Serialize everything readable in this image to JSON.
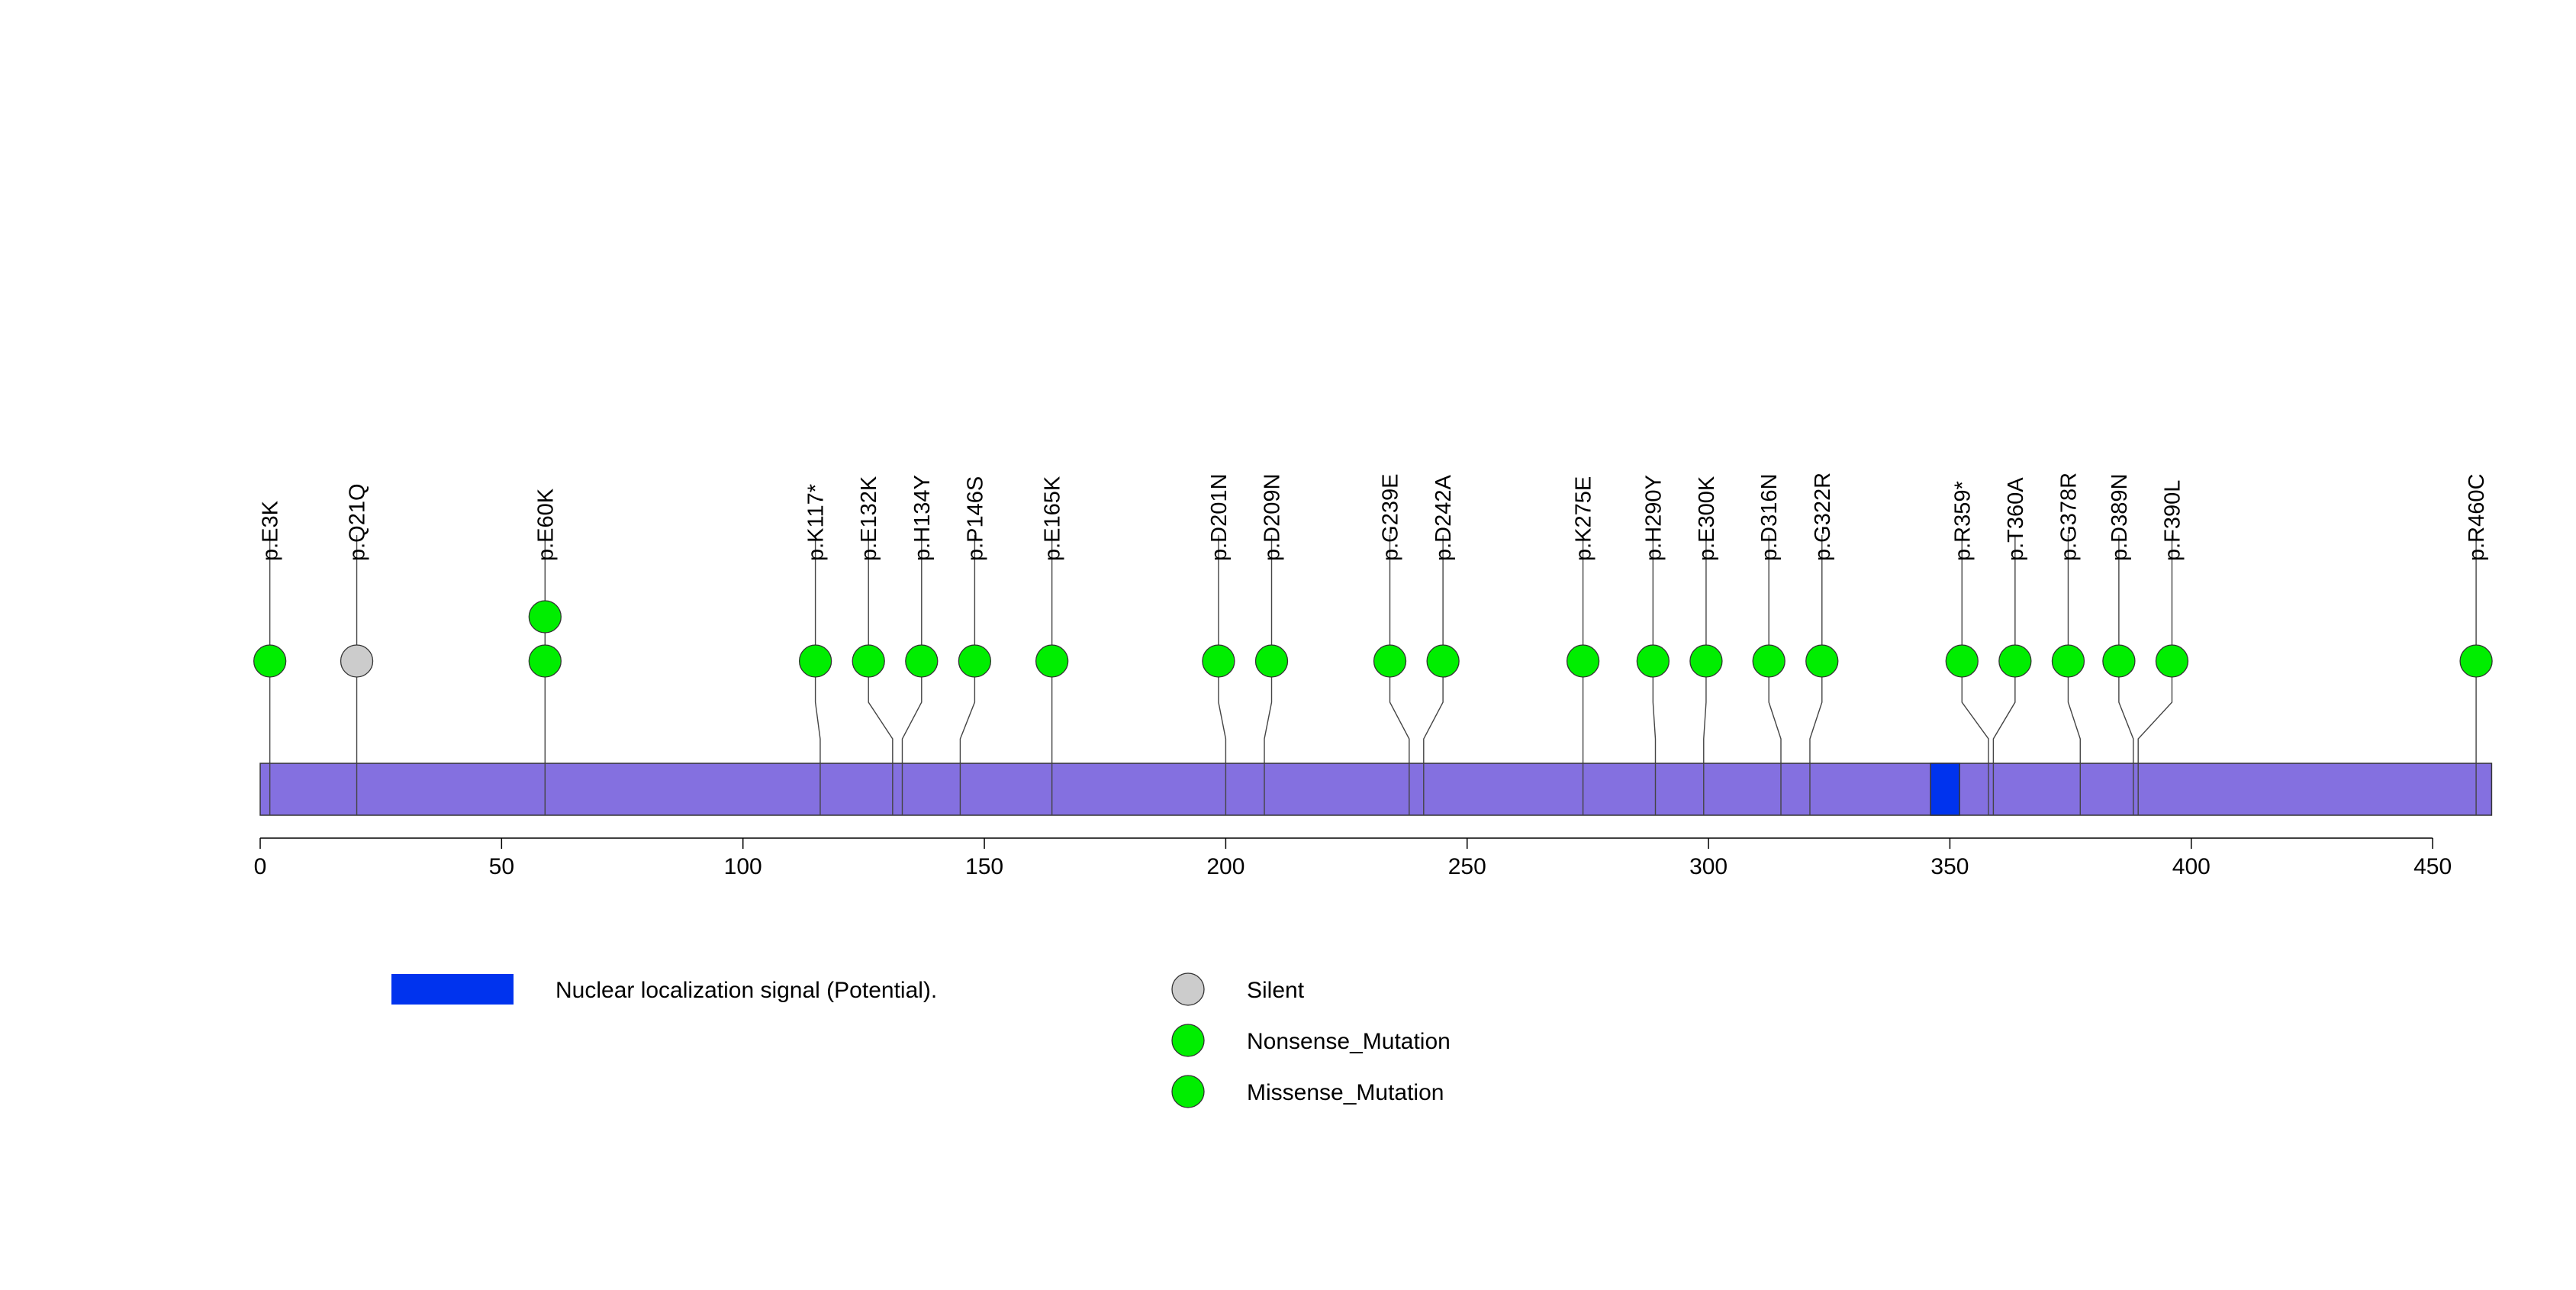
{
  "chart_data": {
    "type": "lollipop",
    "title": "",
    "protein_length": 460,
    "x_axis": {
      "ticks": [
        0,
        50,
        100,
        150,
        200,
        250,
        300,
        350,
        400,
        450
      ],
      "tick_labels": [
        "0",
        "50",
        "100",
        "150",
        "200",
        "250",
        "300",
        "350",
        "400",
        "450"
      ]
    },
    "domains": [
      {
        "name": "Nuclear localization signal (Potential).",
        "start": 346,
        "end": 352,
        "color": "#0033ee"
      }
    ],
    "mutations": [
      {
        "label": "p.E3K",
        "position": 2,
        "head": 2,
        "count": 1,
        "type": "Missense_Mutation",
        "color": "#00ee00"
      },
      {
        "label": "p.Q21Q",
        "position": 20,
        "head": 20,
        "count": 1,
        "type": "Silent",
        "color": "#cccccc"
      },
      {
        "label": "p.E60K",
        "position": 59,
        "head": 59,
        "count": 2,
        "type": "Missense_Mutation",
        "color": "#00ee00"
      },
      {
        "label": "p.K117*",
        "position": 116,
        "head": 115,
        "count": 1,
        "type": "Nonsense_Mutation",
        "color": "#00ee00"
      },
      {
        "label": "p.E132K",
        "position": 131,
        "head": 126,
        "count": 1,
        "type": "Missense_Mutation",
        "color": "#00ee00"
      },
      {
        "label": "p.H134Y",
        "position": 133,
        "head": 137,
        "count": 1,
        "type": "Missense_Mutation",
        "color": "#00ee00"
      },
      {
        "label": "p.P146S",
        "position": 145,
        "head": 148,
        "count": 1,
        "type": "Missense_Mutation",
        "color": "#00ee00"
      },
      {
        "label": "p.E165K",
        "position": 164,
        "head": 164,
        "count": 1,
        "type": "Missense_Mutation",
        "color": "#00ee00"
      },
      {
        "label": "p.D201N",
        "position": 200,
        "head": 198.5,
        "count": 1,
        "type": "Missense_Mutation",
        "color": "#00ee00"
      },
      {
        "label": "p.D209N",
        "position": 208,
        "head": 209.5,
        "count": 1,
        "type": "Missense_Mutation",
        "color": "#00ee00"
      },
      {
        "label": "p.G239E",
        "position": 238,
        "head": 234,
        "count": 1,
        "type": "Missense_Mutation",
        "color": "#00ee00"
      },
      {
        "label": "p.D242A",
        "position": 241,
        "head": 245,
        "count": 1,
        "type": "Missense_Mutation",
        "color": "#00ee00"
      },
      {
        "label": "p.K275E",
        "position": 274,
        "head": 274,
        "count": 1,
        "type": "Missense_Mutation",
        "color": "#00ee00"
      },
      {
        "label": "p.H290Y",
        "position": 289,
        "head": 288.5,
        "count": 1,
        "type": "Missense_Mutation",
        "color": "#00ee00"
      },
      {
        "label": "p.E300K",
        "position": 299,
        "head": 299.5,
        "count": 1,
        "type": "Missense_Mutation",
        "color": "#00ee00"
      },
      {
        "label": "p.D316N",
        "position": 315,
        "head": 312.5,
        "count": 1,
        "type": "Missense_Mutation",
        "color": "#00ee00"
      },
      {
        "label": "p.G322R",
        "position": 321,
        "head": 323.5,
        "count": 1,
        "type": "Missense_Mutation",
        "color": "#00ee00"
      },
      {
        "label": "p.R359*",
        "position": 358,
        "head": 352.5,
        "count": 1,
        "type": "Nonsense_Mutation",
        "color": "#00ee00"
      },
      {
        "label": "p.T360A",
        "position": 359,
        "head": 363.5,
        "count": 1,
        "type": "Missense_Mutation",
        "color": "#00ee00"
      },
      {
        "label": "p.G378R",
        "position": 377,
        "head": 374.5,
        "count": 1,
        "type": "Missense_Mutation",
        "color": "#00ee00"
      },
      {
        "label": "p.D389N",
        "position": 388,
        "head": 385,
        "count": 1,
        "type": "Missense_Mutation",
        "color": "#00ee00"
      },
      {
        "label": "p.F390L",
        "position": 389,
        "head": 396,
        "count": 1,
        "type": "Missense_Mutation",
        "color": "#00ee00"
      },
      {
        "label": "p.R460C",
        "position": 459,
        "head": 459,
        "count": 1,
        "type": "Missense_Mutation",
        "color": "#00ee00"
      }
    ],
    "legend": {
      "domain_items": [
        {
          "label": "Nuclear localization signal (Potential).",
          "color": "#0033ee"
        }
      ],
      "mutation_items": [
        {
          "label": "Silent",
          "color": "#cccccc"
        },
        {
          "label": "Nonsense_Mutation",
          "color": "#00ee00"
        },
        {
          "label": "Missense_Mutation",
          "color": "#00ee00"
        }
      ]
    },
    "colors": {
      "protein_bar": "#8470e0",
      "outline": "#333333"
    }
  }
}
